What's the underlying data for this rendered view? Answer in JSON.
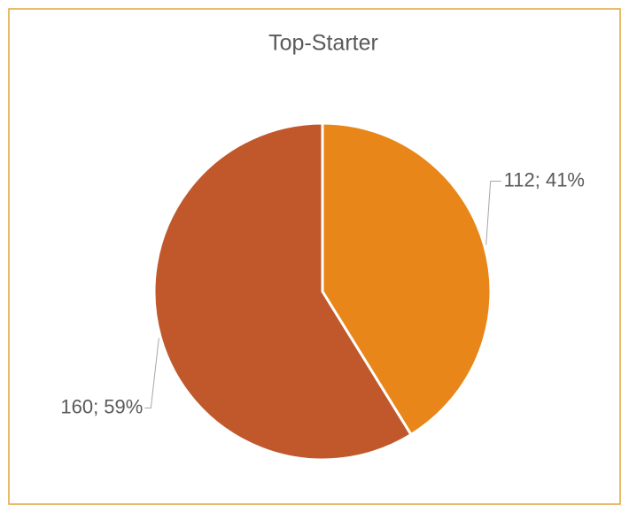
{
  "chart_data": {
    "type": "pie",
    "title": "Top-Starter",
    "values": [
      112,
      160
    ],
    "value_labels": [
      "112; 41%",
      "160; 59%"
    ],
    "colors": [
      "#e8861a",
      "#c0582b"
    ]
  }
}
